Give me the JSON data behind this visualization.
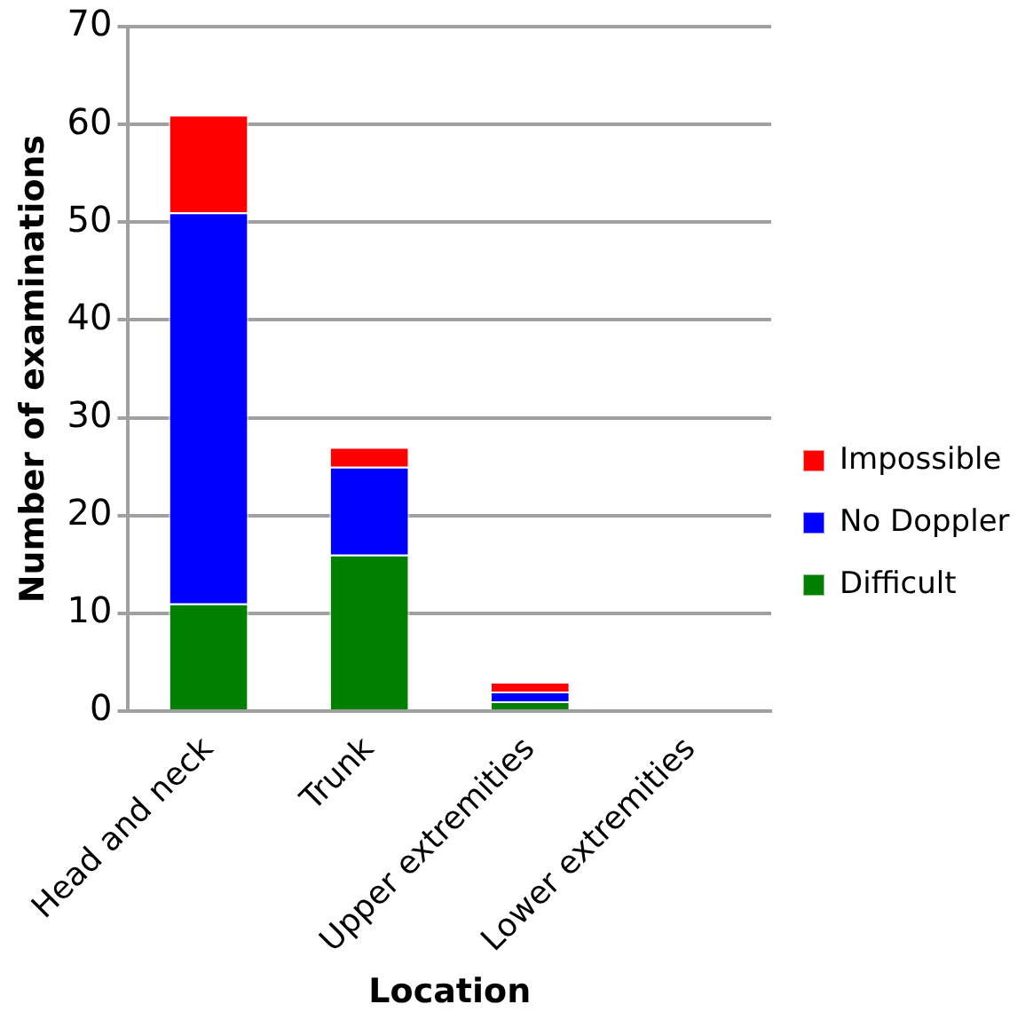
{
  "chart_data": {
    "type": "bar",
    "stacked": true,
    "xlabel": "Location",
    "ylabel": "Number of examinations",
    "categories": [
      "Head and neck",
      "Trunk",
      "Upper extremities",
      "Lower extremities"
    ],
    "series": [
      {
        "name": "Difficult",
        "color": "#008000",
        "values": [
          11,
          16,
          1,
          0
        ]
      },
      {
        "name": "No Doppler",
        "color": "#0000ff",
        "values": [
          40,
          9,
          1,
          0
        ]
      },
      {
        "name": "Impossible",
        "color": "#ff0000",
        "values": [
          10,
          2,
          1,
          0
        ]
      }
    ],
    "ylim": [
      0,
      70
    ],
    "yticks": [
      0,
      10,
      20,
      30,
      40,
      50,
      60,
      70
    ],
    "grid": "y",
    "legend": "right"
  }
}
